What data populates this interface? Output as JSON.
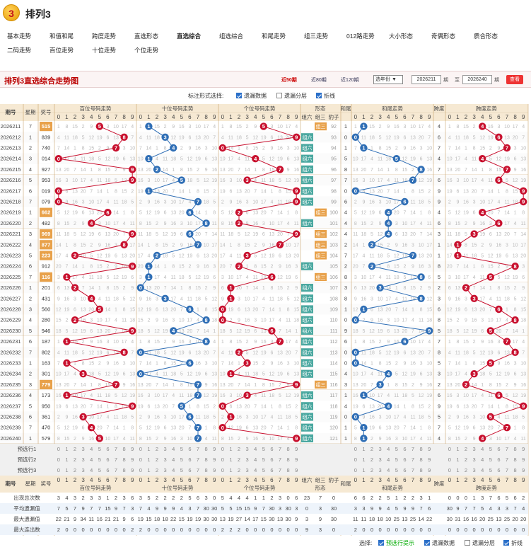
{
  "app": {
    "logo": "3",
    "title": "排列3"
  },
  "nav": [
    [
      "基本走势",
      "和值和尾",
      "跨度走势",
      "直选形态",
      "直选综合",
      "组选综合",
      "和尾走势",
      "组三走势",
      "012路走势",
      "大小形态",
      "奇偶形态",
      "质合形态"
    ],
    [
      "二码走势",
      "百位走势",
      "十位走势",
      "个位走势"
    ]
  ],
  "nav_active": "直选综合",
  "bar": {
    "title": "排列3直选综合走势图",
    "links": [
      "近50期",
      "近80期",
      "近120期"
    ],
    "active": "近50期",
    "select": "选年份",
    "from": "2026211",
    "from_unit": "期",
    "to_label": "至",
    "to": "2026240",
    "to_unit": "期",
    "query": "查看"
  },
  "opts": {
    "label": "标注形式选择:",
    "items": [
      {
        "label": "遗漏数据",
        "on": true
      },
      {
        "label": "遗漏分层",
        "on": false
      },
      {
        "label": "折线",
        "on": true
      }
    ]
  },
  "headers": {
    "issue": "期号",
    "week": "星期",
    "prize": "奖号",
    "bai": "百位号码走势",
    "shi": "十位号码走势",
    "ge": "个位号码走势",
    "xt": "形态",
    "xt_cols": [
      "组六",
      "组三",
      "豹子"
    ],
    "hw": "和尾",
    "hz": "和尾走势",
    "kd": "跨度",
    "kdz": "跨度走势"
  },
  "draws": [
    {
      "i": "2026211",
      "w": "7",
      "n": "515"
    },
    {
      "i": "2026212",
      "w": "1",
      "n": "839"
    },
    {
      "i": "2026213",
      "w": "2",
      "n": "740"
    },
    {
      "i": "2026214",
      "w": "3",
      "n": "014"
    },
    {
      "i": "2026215",
      "w": "4",
      "n": "927"
    },
    {
      "i": "2026216",
      "w": "5",
      "n": "953"
    },
    {
      "i": "2026217",
      "w": "6",
      "n": "019"
    },
    {
      "i": "2026218",
      "w": "7",
      "n": "079"
    },
    {
      "i": "2026219",
      "w": "1",
      "n": "662"
    },
    {
      "i": "2026220",
      "w": "2",
      "n": "482"
    },
    {
      "i": "2026221",
      "w": "3",
      "n": "969"
    },
    {
      "i": "2026222",
      "w": "4",
      "n": "877"
    },
    {
      "i": "2026223",
      "w": "5",
      "n": "223"
    },
    {
      "i": "2026224",
      "w": "6",
      "n": "912"
    },
    {
      "i": "2026225",
      "w": "7",
      "n": "116"
    },
    {
      "i": "2026226",
      "w": "1",
      "n": "201"
    },
    {
      "i": "2026227",
      "w": "2",
      "n": "431"
    },
    {
      "i": "2026228",
      "w": "3",
      "n": "560"
    },
    {
      "i": "2026229",
      "w": "4",
      "n": "280"
    },
    {
      "i": "2026230",
      "w": "5",
      "n": "946"
    },
    {
      "i": "2026231",
      "w": "6",
      "n": "187"
    },
    {
      "i": "2026232",
      "w": "7",
      "n": "802"
    },
    {
      "i": "2026233",
      "w": "1",
      "n": "163"
    },
    {
      "i": "2026234",
      "w": "2",
      "n": "301"
    },
    {
      "i": "2026235",
      "w": "3",
      "n": "779"
    },
    {
      "i": "2026236",
      "w": "4",
      "n": "173"
    },
    {
      "i": "2026237",
      "w": "5",
      "n": "950"
    },
    {
      "i": "2026238",
      "w": "6",
      "n": "361"
    },
    {
      "i": "2026239",
      "w": "7",
      "n": "470"
    },
    {
      "i": "2026240",
      "w": "1",
      "n": "579"
    }
  ],
  "pre": [
    "预选行1",
    "预选行2",
    "预选行3"
  ],
  "stats": [
    {
      "label": "出现总次数",
      "bai": [
        "3",
        "4",
        "3",
        "2",
        "3",
        "3",
        "1",
        "2",
        "3",
        "6"
      ],
      "shi": [
        "3",
        "5",
        "2",
        "2",
        "2",
        "2",
        "5",
        "6",
        "3",
        "0"
      ],
      "ge": [
        "5",
        "4",
        "4",
        "4",
        "1",
        "1",
        "2",
        "3",
        "0",
        "6"
      ],
      "xt": [
        "23",
        "7",
        "0"
      ],
      "hw": [
        "6",
        "6",
        "2",
        "2",
        "5",
        "1",
        "2",
        "2",
        "3",
        "1"
      ],
      "kd": [
        "0",
        "0",
        "0",
        "1",
        "3",
        "7",
        "6",
        "5",
        "6",
        "2"
      ]
    },
    {
      "label": "平均遗漏值",
      "bai": [
        "7",
        "5",
        "7",
        "9",
        "7",
        "7",
        "15",
        "9",
        "7",
        "3"
      ],
      "shi": [
        "7",
        "4",
        "9",
        "9",
        "9",
        "4",
        "3",
        "7",
        "30",
        "30"
      ],
      "ge": [
        "5",
        "5",
        "15",
        "15",
        "9",
        "7",
        "30",
        "3",
        "30",
        "3"
      ],
      "xt": [
        "0",
        "3",
        "30"
      ],
      "hw": [
        "3",
        "3",
        "9",
        "9",
        "4",
        "5",
        "9",
        "9",
        "7",
        "6"
      ],
      "kd": [
        "30",
        "9",
        "7",
        "7",
        "5",
        "4",
        "3",
        "3",
        "7",
        "4"
      ]
    },
    {
      "label": "最大遗漏值",
      "bai": [
        "22",
        "21",
        "9",
        "34",
        "11",
        "16",
        "21",
        "21",
        "9",
        "6"
      ],
      "shi": [
        "19",
        "15",
        "18",
        "18",
        "22",
        "15",
        "19",
        "19",
        "30",
        "30"
      ],
      "ge": [
        "13",
        "19",
        "27",
        "14",
        "17",
        "15",
        "30",
        "13",
        "30",
        "9"
      ],
      "xt": [
        "3",
        "9",
        "30"
      ],
      "hw": [
        "11",
        "11",
        "18",
        "18",
        "10",
        "25",
        "13",
        "25",
        "14",
        "22"
      ],
      "kd": [
        "30",
        "31",
        "16",
        "16",
        "20",
        "25",
        "13",
        "25",
        "20",
        "20"
      ]
    },
    {
      "label": "最大连出数",
      "bai": [
        "2",
        "0",
        "0",
        "0",
        "0",
        "0",
        "0",
        "0",
        "0",
        "2"
      ],
      "shi": [
        "2",
        "0",
        "0",
        "0",
        "0",
        "0",
        "0",
        "0",
        "0",
        "0"
      ],
      "ge": [
        "2",
        "2",
        "2",
        "0",
        "0",
        "0",
        "0",
        "0",
        "0",
        "0"
      ],
      "xt": [
        "9",
        "3",
        "0"
      ],
      "hw": [
        "2",
        "0",
        "0",
        "0",
        "0",
        "0",
        "0",
        "0",
        "0",
        "0"
      ],
      "kd": [
        "0",
        "0",
        "0",
        "0",
        "0",
        "0",
        "0",
        "0",
        "0",
        "0"
      ]
    }
  ],
  "foot": {
    "label": "选择:",
    "items": [
      {
        "label": "预选行提示",
        "on": true
      },
      {
        "label": "遗漏数据",
        "on": true
      },
      {
        "label": "遗漏分层",
        "on": false
      },
      {
        "label": "折线",
        "on": true
      }
    ]
  },
  "colors": {
    "red": "#c8102e",
    "blue": "#2f6eb5",
    "prize": "#f2c48a",
    "xt": "#4aa8a0"
  }
}
